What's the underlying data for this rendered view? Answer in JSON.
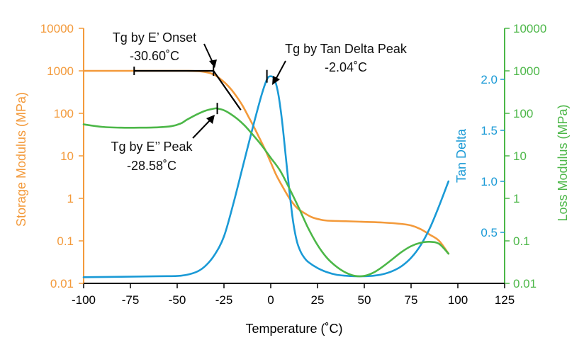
{
  "colors": {
    "storage": "#f39a3b",
    "loss": "#4cb748",
    "tan_delta": "#1a9ad6",
    "axis": "#000000",
    "annotation": "#000000"
  },
  "chart_data": {
    "type": "line",
    "title": "",
    "xlabel": "Temperature (˚C)",
    "xlim": [
      -100,
      125
    ],
    "x_ticks": [
      -100,
      -75,
      -50,
      -25,
      0,
      25,
      50,
      75,
      100,
      125
    ],
    "x_tick_labels": [
      "-100",
      "-75",
      "-50",
      "-25",
      "0",
      "25",
      "50",
      "75",
      "100",
      "125"
    ],
    "y_left": {
      "label": "Storage Modulus (MPa)",
      "scale": "log",
      "lim": [
        0.01,
        10000
      ],
      "ticks": [
        0.01,
        0.1,
        1,
        10,
        100,
        1000,
        10000
      ],
      "tick_labels": [
        "0.01",
        "0.1",
        "1",
        "10",
        "100",
        "1000",
        "10000"
      ]
    },
    "y_right_loss": {
      "label": "Loss Modulus (MPa)",
      "scale": "log",
      "lim": [
        0.01,
        10000
      ],
      "ticks": [
        0.01,
        0.1,
        1,
        10,
        100,
        1000,
        10000
      ],
      "tick_labels": [
        "0.01",
        "0.1",
        "1",
        "10",
        "100",
        "1000",
        "10000"
      ]
    },
    "y_right_tan": {
      "label": "Tan Delta",
      "scale": "linear",
      "lim": [
        0.0,
        2.5
      ],
      "ticks": [
        0.5,
        1.0,
        1.5,
        2.0
      ],
      "tick_labels": [
        "0.5",
        "1.0",
        "1.5",
        "2.0"
      ]
    },
    "series": [
      {
        "name": "Storage Modulus",
        "axis": "left",
        "x": [
          -100,
          -80,
          -60,
          -45,
          -38,
          -33,
          -30,
          -27,
          -24,
          -21,
          -18,
          -15,
          -12,
          -9,
          -6,
          -3,
          0,
          3,
          6,
          10,
          14,
          18,
          22,
          26,
          30,
          40,
          50,
          60,
          70,
          75,
          80,
          85,
          90,
          95
        ],
        "y": [
          1000,
          1000,
          1000,
          1000,
          980,
          900,
          800,
          650,
          500,
          360,
          240,
          150,
          85,
          48,
          26,
          14,
          7,
          3.5,
          2,
          1,
          0.6,
          0.45,
          0.36,
          0.32,
          0.3,
          0.29,
          0.28,
          0.27,
          0.25,
          0.23,
          0.19,
          0.14,
          0.1,
          0.05
        ]
      },
      {
        "name": "Loss Modulus",
        "axis": "right_loss",
        "x": [
          -100,
          -90,
          -80,
          -70,
          -60,
          -53,
          -48,
          -45,
          -40,
          -35,
          -30,
          -28.6,
          -25,
          -22,
          -18,
          -14,
          -10,
          -5,
          0,
          5,
          10,
          15,
          20,
          25,
          30,
          35,
          40,
          45,
          50,
          55,
          60,
          65,
          70,
          75,
          80,
          85,
          90,
          95
        ],
        "y": [
          55,
          48,
          46,
          46,
          47,
          50,
          58,
          70,
          92,
          115,
          130,
          130,
          118,
          100,
          75,
          52,
          33,
          18,
          9,
          4.5,
          1.7,
          0.6,
          0.2,
          0.08,
          0.04,
          0.025,
          0.018,
          0.015,
          0.015,
          0.018,
          0.025,
          0.037,
          0.055,
          0.075,
          0.09,
          0.095,
          0.085,
          0.05
        ]
      },
      {
        "name": "Tan Delta",
        "axis": "right_tan",
        "x": [
          -100,
          -80,
          -60,
          -48,
          -40,
          -35,
          -30,
          -25,
          -20,
          -15,
          -10,
          -5,
          -2,
          0,
          2,
          4,
          6,
          8,
          10,
          12,
          14,
          16,
          18,
          20,
          25,
          30,
          35,
          40,
          45,
          50,
          55,
          60,
          65,
          70,
          75,
          80,
          85,
          90,
          95
        ],
        "y": [
          0.06,
          0.065,
          0.07,
          0.075,
          0.11,
          0.17,
          0.28,
          0.46,
          0.78,
          1.14,
          1.5,
          1.84,
          2.0,
          2.03,
          2.0,
          1.86,
          1.6,
          1.25,
          0.9,
          0.6,
          0.41,
          0.31,
          0.25,
          0.21,
          0.15,
          0.11,
          0.085,
          0.075,
          0.07,
          0.07,
          0.075,
          0.09,
          0.12,
          0.17,
          0.25,
          0.37,
          0.54,
          0.76,
          1.0
        ]
      }
    ],
    "annotations": [
      {
        "name": "tg-onset",
        "label_line1": "Tg by E’ Onset",
        "label_line2": "-30.60˚C",
        "x": -30.6
      },
      {
        "name": "tg-tan-peak",
        "label_line1": "Tg by Tan Delta Peak",
        "label_line2": "-2.04˚C",
        "x": -2.04
      },
      {
        "name": "tg-loss-peak",
        "label_line1": "Tg by E’’ Peak",
        "label_line2": "-28.58˚C",
        "x": -28.58
      }
    ],
    "grid": false,
    "legend": "none"
  }
}
